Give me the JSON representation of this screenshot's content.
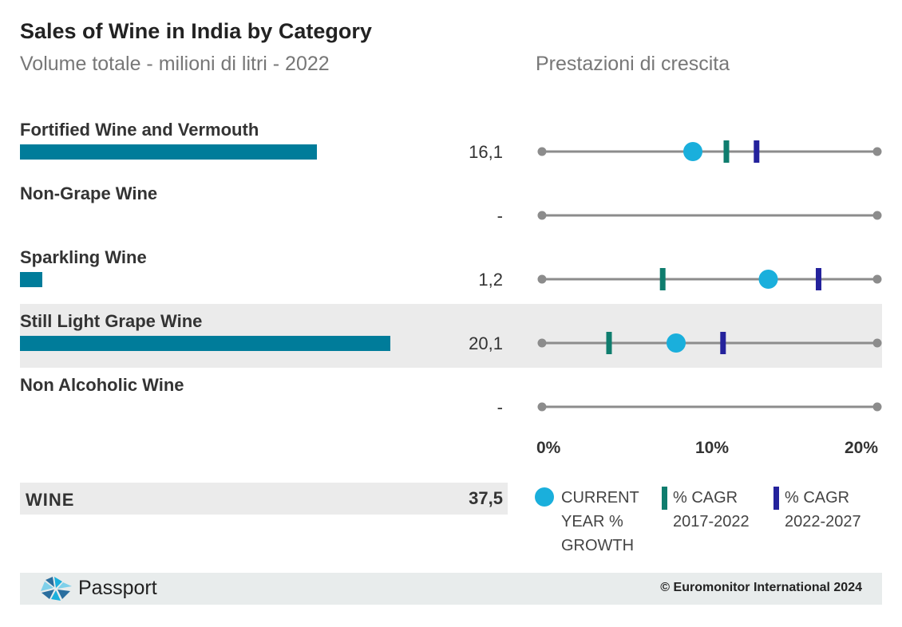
{
  "chart_data": {
    "type": "bar",
    "title": "Sales of Wine in India by Category",
    "subtitle": "Volume totale - milioni di litri - 2022",
    "growth_title": "Prestazioni di crescita",
    "categories": [
      "Fortified Wine and Vermouth",
      "Non-Grape Wine",
      "Sparkling Wine",
      "Still Light Grape Wine",
      "Non Alcoholic Wine"
    ],
    "values": [
      16.1,
      null,
      1.2,
      20.1,
      null
    ],
    "value_labels": [
      "16,1",
      "-",
      "1,2",
      "20,1",
      "-"
    ],
    "highlighted_row": 3,
    "bar_color": "#007c9a",
    "growth": {
      "xlim": [
        0,
        20
      ],
      "tick_labels": [
        "0%",
        "10%",
        "20%"
      ],
      "series": [
        {
          "name": "CURRENT YEAR % GROWTH",
          "marker": "circle",
          "color": "#1aafdc",
          "values": [
            9.0,
            null,
            13.5,
            8.0,
            null
          ]
        },
        {
          "name": "% CAGR 2017-2022",
          "marker": "tick",
          "color": "#0f7d6e",
          "values": [
            11.0,
            null,
            7.2,
            4.0,
            null
          ]
        },
        {
          "name": "% CAGR 2022-2027",
          "marker": "tick",
          "color": "#24229c",
          "values": [
            12.8,
            null,
            16.5,
            10.8,
            null
          ]
        }
      ]
    },
    "total": {
      "label": "WINE",
      "value_label": "37,5"
    }
  },
  "legend": [
    {
      "lines": [
        "CURRENT",
        "YEAR %",
        "GROWTH"
      ]
    },
    {
      "lines": [
        "% CAGR",
        "2017-2022"
      ]
    },
    {
      "lines": [
        "% CAGR",
        "2022-2027"
      ]
    }
  ],
  "footer": {
    "brand": "Passport",
    "copyright": "© Euromonitor International 2024",
    "logo_icon": "passport-logo-icon"
  }
}
